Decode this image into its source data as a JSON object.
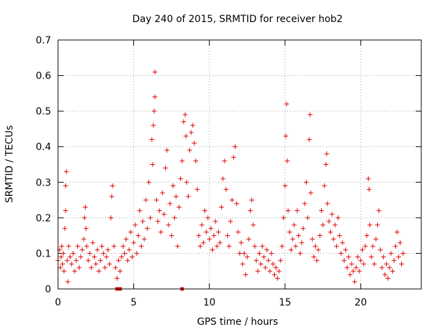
{
  "chart_data": {
    "type": "scatter",
    "title": "Day 240 of 2015, SRMTID for receiver hob2",
    "xlabel": "GPS time / hours",
    "ylabel": "SRMTID / TECUs",
    "xlim": [
      0,
      24
    ],
    "ylim": [
      0,
      0.7
    ],
    "x_ticks": [
      0,
      5,
      10,
      15,
      20
    ],
    "x_tick_labels": [
      "0",
      "5",
      "10",
      "15",
      "20"
    ],
    "y_ticks": [
      0,
      0.1,
      0.2,
      0.3,
      0.4,
      0.5,
      0.6,
      0.7
    ],
    "y_tick_labels": [
      "0",
      "0.1",
      "0.2",
      "0.3",
      "0.4",
      "0.5",
      "0.6",
      "0.7"
    ],
    "grid": true,
    "marker": "+",
    "series_color": "#e00000",
    "series": [
      {
        "name": "SRMTID",
        "points": [
          [
            0.0,
            0.08
          ],
          [
            0.1,
            0.11
          ],
          [
            0.15,
            0.06
          ],
          [
            0.2,
            0.09
          ],
          [
            0.25,
            0.12
          ],
          [
            0.3,
            0.07
          ],
          [
            0.35,
            0.1
          ],
          [
            0.4,
            0.05
          ],
          [
            0.45,
            0.17
          ],
          [
            0.5,
            0.22
          ],
          [
            0.5,
            0.29
          ],
          [
            0.55,
            0.33
          ],
          [
            0.6,
            0.08
          ],
          [
            0.65,
            0.02
          ],
          [
            0.7,
            0.12
          ],
          [
            0.8,
            0.09
          ],
          [
            0.9,
            0.07
          ],
          [
            1.0,
            0.1
          ],
          [
            1.1,
            0.05
          ],
          [
            1.2,
            0.08
          ],
          [
            1.3,
            0.12
          ],
          [
            1.4,
            0.06
          ],
          [
            1.5,
            0.09
          ],
          [
            1.6,
            0.11
          ],
          [
            1.7,
            0.14
          ],
          [
            1.75,
            0.2
          ],
          [
            1.8,
            0.23
          ],
          [
            1.85,
            0.17
          ],
          [
            1.9,
            0.12
          ],
          [
            2.0,
            0.08
          ],
          [
            2.1,
            0.1
          ],
          [
            2.2,
            0.06
          ],
          [
            2.3,
            0.13
          ],
          [
            2.4,
            0.09
          ],
          [
            2.5,
            0.07
          ],
          [
            2.6,
            0.11
          ],
          [
            2.7,
            0.05
          ],
          [
            2.8,
            0.08
          ],
          [
            2.9,
            0.12
          ],
          [
            3.0,
            0.1
          ],
          [
            3.1,
            0.06
          ],
          [
            3.2,
            0.09
          ],
          [
            3.3,
            0.11
          ],
          [
            3.4,
            0.07
          ],
          [
            3.5,
            0.2
          ],
          [
            3.55,
            0.26
          ],
          [
            3.6,
            0.29
          ],
          [
            3.7,
            0.12
          ],
          [
            3.8,
            0.06
          ],
          [
            3.9,
            0.03
          ],
          [
            4.0,
            0.08
          ],
          [
            4.1,
            0.05
          ],
          [
            4.2,
            0.09
          ],
          [
            4.3,
            0.12
          ],
          [
            4.4,
            0.1
          ],
          [
            4.5,
            0.14
          ],
          [
            4.6,
            0.08
          ],
          [
            4.7,
            0.11
          ],
          [
            4.8,
            0.16
          ],
          [
            4.9,
            0.09
          ],
          [
            5.0,
            0.13
          ],
          [
            5.1,
            0.18
          ],
          [
            5.2,
            0.1
          ],
          [
            5.3,
            0.15
          ],
          [
            5.4,
            0.22
          ],
          [
            5.5,
            0.12
          ],
          [
            5.6,
            0.19
          ],
          [
            5.7,
            0.14
          ],
          [
            5.8,
            0.25
          ],
          [
            5.9,
            0.17
          ],
          [
            6.0,
            0.3
          ],
          [
            6.1,
            0.2
          ],
          [
            6.2,
            0.42
          ],
          [
            6.25,
            0.35
          ],
          [
            6.3,
            0.46
          ],
          [
            6.35,
            0.5
          ],
          [
            6.4,
            0.61
          ],
          [
            6.4,
            0.54
          ],
          [
            6.5,
            0.25
          ],
          [
            6.6,
            0.19
          ],
          [
            6.7,
            0.22
          ],
          [
            6.8,
            0.16
          ],
          [
            6.9,
            0.27
          ],
          [
            7.0,
            0.21
          ],
          [
            7.1,
            0.34
          ],
          [
            7.2,
            0.39
          ],
          [
            7.3,
            0.18
          ],
          [
            7.4,
            0.24
          ],
          [
            7.5,
            0.15
          ],
          [
            7.6,
            0.29
          ],
          [
            7.7,
            0.2
          ],
          [
            7.8,
            0.26
          ],
          [
            7.9,
            0.12
          ],
          [
            8.0,
            0.23
          ],
          [
            8.1,
            0.31
          ],
          [
            8.2,
            0.36
          ],
          [
            8.3,
            0.47
          ],
          [
            8.4,
            0.49
          ],
          [
            8.45,
            0.43
          ],
          [
            8.5,
            0.3
          ],
          [
            8.6,
            0.26
          ],
          [
            8.7,
            0.39
          ],
          [
            8.8,
            0.44
          ],
          [
            8.9,
            0.46
          ],
          [
            9.0,
            0.41
          ],
          [
            9.1,
            0.36
          ],
          [
            9.2,
            0.28
          ],
          [
            9.3,
            0.15
          ],
          [
            9.4,
            0.12
          ],
          [
            9.5,
            0.18
          ],
          [
            9.6,
            0.13
          ],
          [
            9.7,
            0.22
          ],
          [
            9.8,
            0.16
          ],
          [
            9.9,
            0.2
          ],
          [
            10.0,
            0.14
          ],
          [
            10.1,
            0.17
          ],
          [
            10.2,
            0.11
          ],
          [
            10.3,
            0.15
          ],
          [
            10.4,
            0.19
          ],
          [
            10.5,
            0.12
          ],
          [
            10.6,
            0.16
          ],
          [
            10.7,
            0.13
          ],
          [
            10.8,
            0.23
          ],
          [
            10.9,
            0.31
          ],
          [
            11.0,
            0.36
          ],
          [
            11.1,
            0.28
          ],
          [
            11.2,
            0.15
          ],
          [
            11.3,
            0.12
          ],
          [
            11.4,
            0.19
          ],
          [
            11.5,
            0.25
          ],
          [
            11.6,
            0.37
          ],
          [
            11.7,
            0.4
          ],
          [
            11.8,
            0.24
          ],
          [
            11.9,
            0.16
          ],
          [
            12.0,
            0.1
          ],
          [
            12.1,
            0.13
          ],
          [
            12.2,
            0.07
          ],
          [
            12.3,
            0.1
          ],
          [
            12.4,
            0.04
          ],
          [
            12.5,
            0.09
          ],
          [
            12.6,
            0.14
          ],
          [
            12.7,
            0.22
          ],
          [
            12.8,
            0.25
          ],
          [
            12.9,
            0.18
          ],
          [
            13.0,
            0.12
          ],
          [
            13.1,
            0.08
          ],
          [
            13.2,
            0.05
          ],
          [
            13.3,
            0.1
          ],
          [
            13.4,
            0.07
          ],
          [
            13.5,
            0.12
          ],
          [
            13.6,
            0.09
          ],
          [
            13.7,
            0.06
          ],
          [
            13.8,
            0.11
          ],
          [
            13.9,
            0.08
          ],
          [
            14.0,
            0.05
          ],
          [
            14.1,
            0.1
          ],
          [
            14.2,
            0.07
          ],
          [
            14.3,
            0.04
          ],
          [
            14.4,
            0.06
          ],
          [
            14.5,
            0.03
          ],
          [
            14.6,
            0.05
          ],
          [
            14.7,
            0.08
          ],
          [
            14.8,
            0.12
          ],
          [
            14.9,
            0.2
          ],
          [
            15.0,
            0.29
          ],
          [
            15.05,
            0.43
          ],
          [
            15.1,
            0.52
          ],
          [
            15.15,
            0.36
          ],
          [
            15.2,
            0.22
          ],
          [
            15.3,
            0.16
          ],
          [
            15.4,
            0.11
          ],
          [
            15.5,
            0.14
          ],
          [
            15.6,
            0.18
          ],
          [
            15.7,
            0.12
          ],
          [
            15.8,
            0.22
          ],
          [
            15.9,
            0.15
          ],
          [
            16.0,
            0.1
          ],
          [
            16.1,
            0.13
          ],
          [
            16.2,
            0.17
          ],
          [
            16.3,
            0.24
          ],
          [
            16.4,
            0.3
          ],
          [
            16.5,
            0.2
          ],
          [
            16.6,
            0.42
          ],
          [
            16.65,
            0.49
          ],
          [
            16.7,
            0.27
          ],
          [
            16.8,
            0.14
          ],
          [
            16.9,
            0.09
          ],
          [
            17.0,
            0.12
          ],
          [
            17.1,
            0.08
          ],
          [
            17.2,
            0.11
          ],
          [
            17.3,
            0.15
          ],
          [
            17.4,
            0.22
          ],
          [
            17.5,
            0.18
          ],
          [
            17.6,
            0.29
          ],
          [
            17.7,
            0.35
          ],
          [
            17.75,
            0.38
          ],
          [
            17.8,
            0.24
          ],
          [
            17.9,
            0.19
          ],
          [
            18.0,
            0.16
          ],
          [
            18.1,
            0.21
          ],
          [
            18.2,
            0.14
          ],
          [
            18.3,
            0.18
          ],
          [
            18.4,
            0.12
          ],
          [
            18.5,
            0.2
          ],
          [
            18.6,
            0.15
          ],
          [
            18.7,
            0.1
          ],
          [
            18.8,
            0.13
          ],
          [
            18.9,
            0.08
          ],
          [
            19.0,
            0.11
          ],
          [
            19.1,
            0.06
          ],
          [
            19.2,
            0.09
          ],
          [
            19.3,
            0.04
          ],
          [
            19.4,
            0.07
          ],
          [
            19.5,
            0.05
          ],
          [
            19.6,
            0.02
          ],
          [
            19.7,
            0.06
          ],
          [
            19.8,
            0.09
          ],
          [
            19.9,
            0.05
          ],
          [
            20.0,
            0.08
          ],
          [
            20.1,
            0.11
          ],
          [
            20.2,
            0.07
          ],
          [
            20.3,
            0.12
          ],
          [
            20.4,
            0.15
          ],
          [
            20.5,
            0.31
          ],
          [
            20.55,
            0.28
          ],
          [
            20.6,
            0.18
          ],
          [
            20.7,
            0.09
          ],
          [
            20.8,
            0.12
          ],
          [
            20.9,
            0.07
          ],
          [
            21.0,
            0.14
          ],
          [
            21.1,
            0.18
          ],
          [
            21.2,
            0.22
          ],
          [
            21.3,
            0.11
          ],
          [
            21.4,
            0.06
          ],
          [
            21.5,
            0.09
          ],
          [
            21.6,
            0.04
          ],
          [
            21.7,
            0.07
          ],
          [
            21.8,
            0.03
          ],
          [
            21.9,
            0.06
          ],
          [
            22.0,
            0.1
          ],
          [
            22.1,
            0.05
          ],
          [
            22.2,
            0.08
          ],
          [
            22.3,
            0.12
          ],
          [
            22.4,
            0.16
          ],
          [
            22.5,
            0.09
          ],
          [
            22.6,
            0.13
          ],
          [
            22.7,
            0.07
          ],
          [
            22.8,
            0.1
          ]
        ]
      },
      {
        "name": "zero-values",
        "points": [
          [
            3.9,
            0.0
          ],
          [
            4.0,
            0.0
          ],
          [
            4.1,
            0.0
          ],
          [
            8.2,
            0.0
          ]
        ]
      }
    ]
  }
}
